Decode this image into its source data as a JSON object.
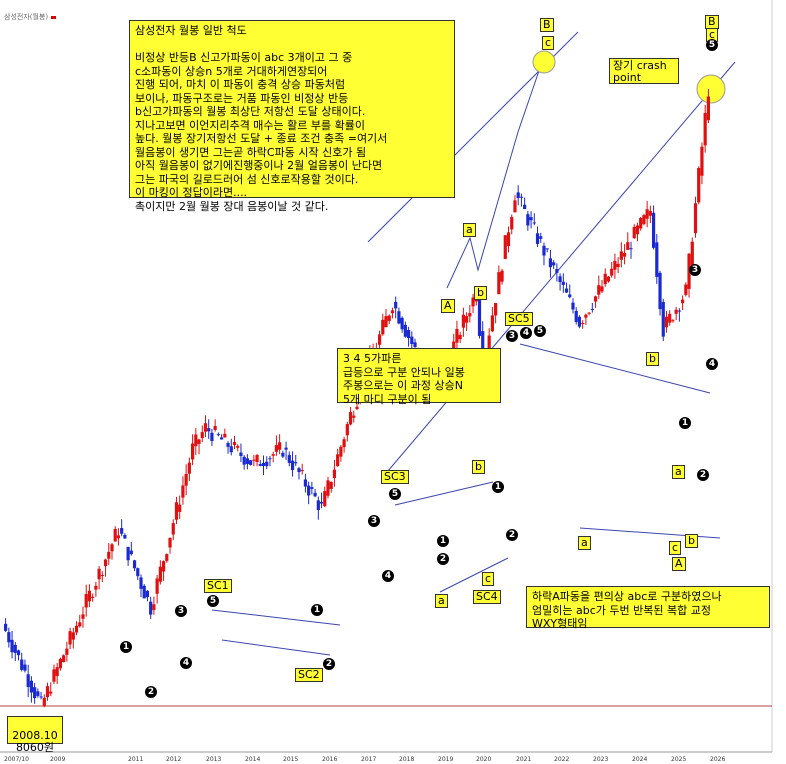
{
  "header": {
    "series_label": "삼성전자(월봉)"
  },
  "colors": {
    "up": "#e01010",
    "down": "#1a2ad0",
    "annotation_bg": "#ffff33",
    "trendline": "#3a46b0",
    "baseline": "#b04040"
  },
  "notes": {
    "main": "삼성전자 월봉 일반 척도\n\n비정상 반등B 신고가파동이 abc 3개이고 그 중\nc소파동이 상승n 5개로 거대하게연장되어\n진행 되어, 마치 이 파동이 충격 상승 파동처럼\n보이나, 파동구조로는 거품 파동인 비정상 반등\nb신고가파동의 월봉 최상단 저항선 도달 상태이다.\n지나고보면 이언지리추격 매수는 활르 부를 확률이\n높다. 월봉 장기저항선 도달 + 종료 조건 충족 =여기서\n월음봉이 생기면 그는곧 하락C파동 시작 신호가 됨\n아직 월음봉이 없기에진행중이나 2월 얼음봉이 난다면\n그는 파국의 길로드러어 섬 신호로작용할 것이다.\n이 마킹이 정답이라면....\n촉이지만 2월 월봉 장대 음봉이날 것 같다.",
    "wave": "3 4 5가파른\n급등으로 구분 안되나 일봉\n주봉으로는 이 과정 상승N\n5개 마디 구분이 됨",
    "correction": "하락A파동을 편의상 abc로 구분하였으나\n엄밀히는 abc가 두번 반복된 복합 교정\nWXY형태임",
    "crash": "장기 crash\npoint",
    "low_label_date": "2008.10",
    "low_label_price": "8060원"
  },
  "labels": {
    "SC1": "SC1",
    "SC2": "SC2",
    "SC3": "SC3",
    "SC4": "SC4",
    "SC5": "SC5",
    "a": "a",
    "b": "b",
    "c": "c",
    "A": "A",
    "B": "B",
    "n1": "1",
    "n2": "2",
    "n3": "3",
    "n4": "4",
    "n5": "5"
  },
  "chart_data": {
    "type": "candlestick",
    "x_ticks": [
      "2007/10",
      "2009",
      "2011",
      "2012",
      "2013",
      "2014",
      "2015",
      "2016",
      "2017",
      "2018",
      "2019",
      "2020",
      "2021",
      "2022",
      "2023",
      "2024",
      "2025",
      "2026"
    ],
    "low_marker": {
      "date": "2008.10",
      "price": 8060
    },
    "swing_path": [
      {
        "x": "2007/10",
        "price": 12000
      },
      {
        "x": "2008/10",
        "price": 8060
      },
      {
        "x": "2010/10",
        "price": 19000
      },
      {
        "x": "2011/08",
        "price": 13000
      },
      {
        "x": "2012/09",
        "price": 28000
      },
      {
        "x": "2013/01",
        "price": 31000
      },
      {
        "x": "2014/04",
        "price": 26000
      },
      {
        "x": "2015/01",
        "price": 28000
      },
      {
        "x": "2016/01",
        "price": 21000
      },
      {
        "x": "2016/10",
        "price": 33000
      },
      {
        "x": "2017/11",
        "price": 57000
      },
      {
        "x": "2018/12",
        "price": 37000
      },
      {
        "x": "2020/01",
        "price": 60000
      },
      {
        "x": "2020/03",
        "price": 42000
      },
      {
        "x": "2021/01",
        "price": 96800
      },
      {
        "x": "2022/09",
        "price": 51800
      },
      {
        "x": "2024/07",
        "price": 88800
      },
      {
        "x": "2024/11",
        "price": 49900
      },
      {
        "x": "2025/06",
        "price": 60000
      },
      {
        "x": "2026/01",
        "price": 160000
      }
    ]
  }
}
